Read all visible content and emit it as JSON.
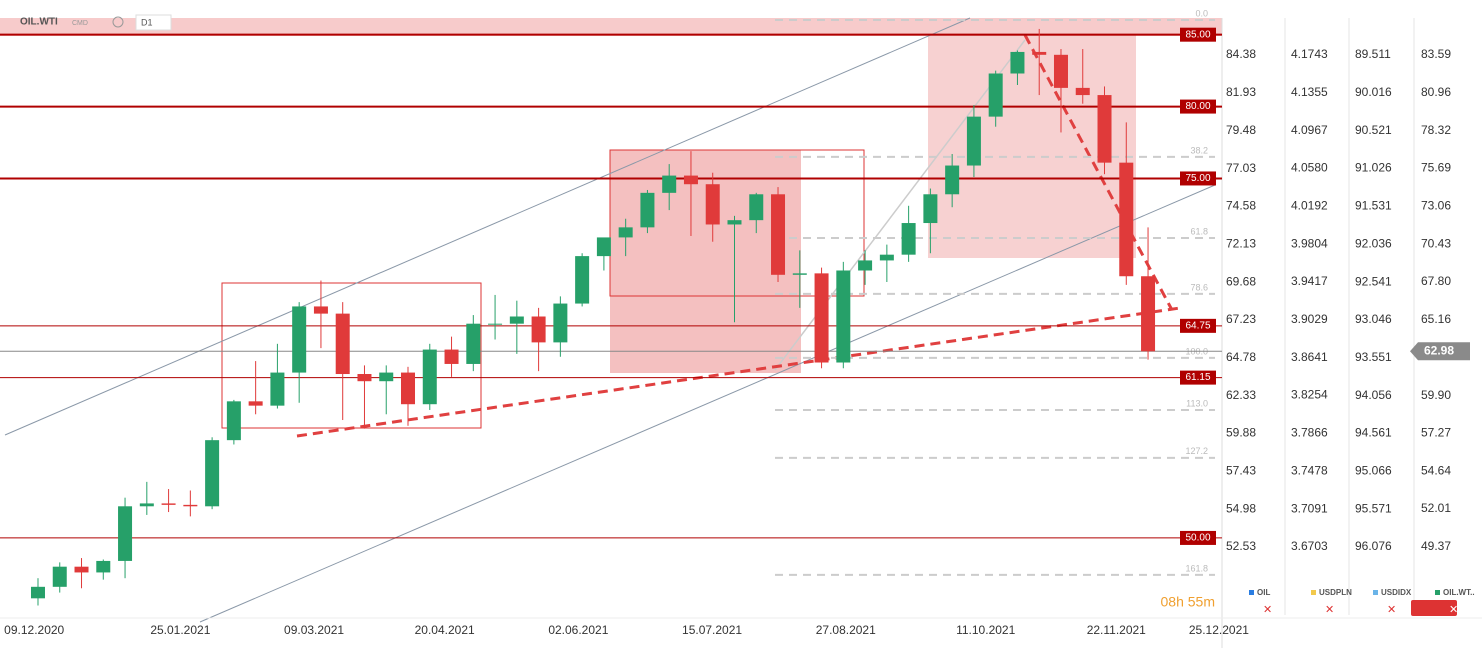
{
  "chart_data": {
    "type": "candlestick",
    "symbol": "OIL.WTI",
    "exchange": "CMD",
    "interval": "D1",
    "x": [
      "07.12.2020",
      "14.12.2020",
      "21.12.2020",
      "28.12.2020",
      "04.01.2021",
      "11.01.2021",
      "18.01.2021",
      "25.01.2021",
      "01.02.2021",
      "08.02.2021",
      "15.02.2021",
      "22.02.2021",
      "01.03.2021",
      "08.03.2021",
      "15.03.2021",
      "22.03.2021",
      "29.03.2021",
      "05.04.2021",
      "12.04.2021",
      "19.04.2021",
      "26.04.2021",
      "03.05.2021",
      "10.05.2021",
      "17.05.2021",
      "24.05.2021",
      "31.05.2021",
      "07.06.2021",
      "14.06.2021",
      "21.06.2021",
      "28.06.2021",
      "05.07.2021",
      "12.07.2021",
      "19.07.2021",
      "26.07.2021",
      "02.08.2021",
      "09.08.2021",
      "16.08.2021",
      "23.08.2021",
      "30.08.2021",
      "06.09.2021",
      "13.09.2021",
      "20.09.2021",
      "27.09.2021",
      "04.10.2021",
      "11.10.2021",
      "18.10.2021",
      "25.10.2021",
      "01.11.2021",
      "08.11.2021",
      "15.11.2021",
      "22.11.2021",
      "29.11.2021"
    ],
    "open": [
      45.8,
      46.6,
      48.0,
      47.6,
      48.4,
      52.2,
      52.4,
      52.3,
      52.2,
      56.8,
      59.5,
      59.2,
      61.5,
      66.1,
      65.6,
      61.4,
      60.9,
      61.5,
      59.3,
      63.1,
      62.1,
      64.9,
      64.9,
      65.4,
      63.6,
      66.3,
      69.6,
      70.9,
      71.6,
      74.0,
      75.2,
      74.6,
      71.8,
      72.1,
      73.9,
      68.3,
      68.4,
      62.2,
      68.6,
      69.3,
      69.7,
      71.9,
      73.9,
      75.9,
      79.3,
      82.3,
      83.8,
      83.6,
      81.3,
      80.8,
      76.1,
      68.2
    ],
    "high": [
      47.2,
      48.3,
      48.6,
      48.5,
      52.8,
      53.9,
      53.4,
      53.3,
      57.0,
      59.6,
      62.3,
      63.5,
      66.4,
      67.9,
      66.4,
      62.0,
      62.0,
      61.9,
      63.5,
      64.0,
      65.5,
      66.9,
      66.5,
      66.0,
      66.8,
      69.8,
      70.8,
      72.2,
      74.2,
      76.0,
      76.9,
      75.4,
      72.4,
      74.0,
      74.4,
      70.0,
      68.8,
      69.2,
      70.0,
      70.4,
      73.1,
      74.3,
      76.7,
      80.1,
      82.5,
      83.9,
      85.4,
      84.0,
      84.0,
      81.4,
      78.9,
      71.6
    ],
    "low": [
      45.3,
      46.2,
      46.5,
      47.1,
      47.2,
      51.6,
      51.8,
      51.5,
      52.0,
      56.5,
      58.6,
      59.0,
      59.4,
      63.2,
      58.2,
      57.6,
      58.6,
      57.8,
      58.9,
      61.2,
      61.6,
      63.8,
      62.8,
      61.6,
      62.6,
      66.1,
      68.6,
      69.6,
      71.2,
      72.8,
      71.0,
      70.6,
      65.0,
      71.2,
      67.8,
      66.0,
      61.8,
      61.8,
      67.6,
      67.8,
      69.2,
      69.8,
      73.0,
      75.1,
      78.6,
      81.5,
      80.8,
      78.2,
      80.2,
      75.3,
      67.6,
      62.4
    ],
    "close": [
      46.6,
      48.0,
      47.6,
      48.4,
      52.2,
      52.4,
      52.3,
      52.2,
      56.8,
      59.5,
      59.2,
      61.5,
      66.1,
      65.6,
      61.4,
      60.9,
      61.5,
      59.3,
      63.1,
      62.1,
      64.9,
      64.9,
      65.4,
      63.6,
      66.3,
      69.6,
      70.9,
      71.6,
      74.0,
      75.2,
      74.6,
      71.8,
      72.1,
      73.9,
      68.3,
      68.4,
      62.2,
      68.6,
      69.3,
      69.7,
      71.9,
      73.9,
      75.9,
      79.3,
      82.3,
      83.8,
      83.6,
      81.3,
      80.8,
      76.1,
      68.2,
      62.98
    ],
    "up_color": "#26a069",
    "down_color": "#e03a3a",
    "xlim": [
      "28.11.2020",
      "26.12.2021"
    ],
    "xticks": [
      "09.12.2020",
      "25.01.2021",
      "09.03.2021",
      "20.04.2021",
      "02.06.2021",
      "15.07.2021",
      "27.08.2021",
      "11.10.2021",
      "22.11.2021",
      "25.12.2021"
    ],
    "ylim": [
      44.64,
      86.16
    ],
    "yticks": [
      83.59,
      80.96,
      78.32,
      75.69,
      73.06,
      70.43,
      {
        "value": 67.8,
        "label": "67.80"
      },
      65.16,
      {
        "value": 59.9,
        "label": "59.90"
      },
      57.27,
      54.64,
      52.01,
      49.37
    ],
    "extra_axes": [
      {
        "ylim": [
          48.13,
          86.78
        ],
        "yticks": [
          84.38,
          81.93,
          79.48,
          77.03,
          74.58,
          72.13,
          69.68,
          67.23,
          64.78,
          62.33,
          59.88,
          57.43,
          54.98,
          52.53
        ]
      },
      {
        "ylim": [
          3.6006,
          4.2122
        ],
        "yticks": [
          4.1743,
          4.1355,
          4.0967,
          {
            "value": 4.058,
            "label": "4.0580"
          },
          4.0192,
          3.9804,
          3.9417,
          3.9029,
          3.8641,
          3.8254,
          3.7866,
          3.7478,
          3.7091,
          3.6703
        ]
      },
      {
        "ylim": [
          96.983,
          89.017
        ],
        "yticks": [
          89.511,
          90.016,
          90.521,
          91.026,
          91.531,
          92.036,
          92.541,
          93.046,
          93.551,
          94.056,
          94.561,
          95.066,
          95.571,
          96.076
        ]
      }
    ],
    "levels": [
      {
        "value": 85,
        "label": "85.00"
      },
      {
        "value": 80,
        "label": "80.00"
      },
      {
        "value": 75,
        "label": "75.00"
      },
      {
        "value": 64.75,
        "label": "64.75"
      },
      {
        "value": 61.15,
        "label": "61.15"
      },
      {
        "value": 50,
        "label": "50.00"
      }
    ],
    "fib": [
      {
        "label": "0.0",
        "price": 86.02
      },
      {
        "label": "38.2",
        "price": 76.5
      },
      {
        "label": "61.8",
        "price": 70.86
      },
      {
        "label": "78.6",
        "price": 66.97
      },
      {
        "label": "100.0",
        "price": 62.52
      },
      {
        "label": "113.0",
        "price": 58.9
      },
      {
        "label": "127.2",
        "price": 55.57
      },
      {
        "label": "161.8",
        "price": 47.43
      }
    ],
    "last_price": 62.98,
    "legend": [
      {
        "name": "OIL",
        "color": "#2a7de1"
      },
      {
        "name": "USDPLN",
        "color": "#f2c94c"
      },
      {
        "name": "USDIDX",
        "color": "#6ab4e8"
      },
      {
        "name": "OIL.WT..",
        "color": "#26a069"
      }
    ],
    "timer": "08h 55m"
  }
}
